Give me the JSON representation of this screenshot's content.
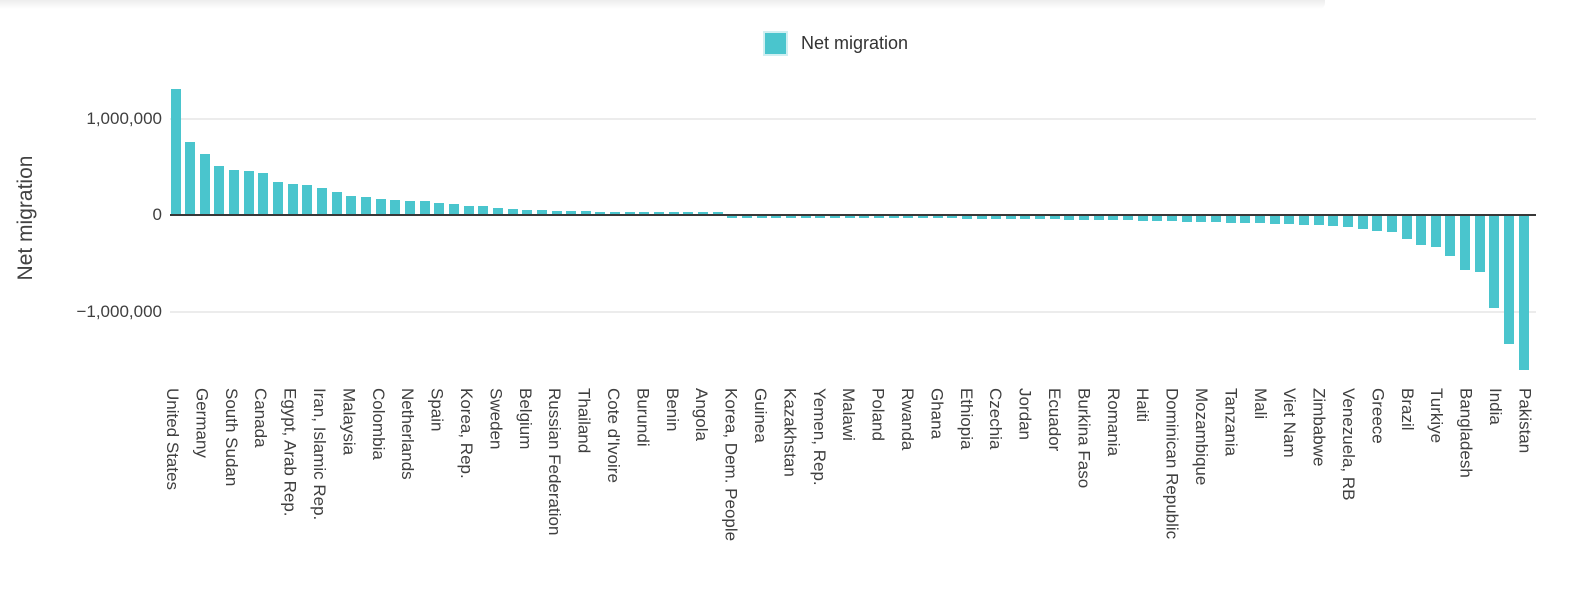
{
  "legend": {
    "label": "Net migration"
  },
  "y_axis": {
    "title": "Net migration",
    "ticks": [
      {
        "label": "1,000,000",
        "value": 1000000
      },
      {
        "label": "0",
        "value": 0
      },
      {
        "label": "−1,000,000",
        "value": -1000000
      }
    ]
  },
  "colors": {
    "bar": "#4AC5CD",
    "zero_axis": "#383838",
    "gridline": "#ececec",
    "label_text": "#3f3f3f"
  },
  "chart_data": {
    "type": "bar",
    "series_name": "Net migration",
    "title": "",
    "xlabel": "",
    "ylabel": "Net migration",
    "ylim": [
      -1700000,
      1400000
    ],
    "grid": "horizontal",
    "legend_position": "top-center",
    "n_bars": 93,
    "label_every_nth_bar": 2,
    "x_labels": [
      "United States",
      "Germany",
      "South Sudan",
      "Canada",
      "Egypt, Arab Rep.",
      "Iran, Islamic Rep.",
      "Malaysia",
      "Colombia",
      "Netherlands",
      "Spain",
      "Korea, Rep.",
      "Sweden",
      "Belgium",
      "Russian Federation",
      "Thailand",
      "Cote d'Ivoire",
      "Burundi",
      "Benin",
      "Angola",
      "Korea, Dem. People",
      "Guinea",
      "Kazakhstan",
      "Yemen, Rep.",
      "Malawi",
      "Poland",
      "Rwanda",
      "Ghana",
      "Ethiopia",
      "Czechia",
      "Jordan",
      "Ecuador",
      "Burkina Faso",
      "Romania",
      "Haiti",
      "Dominican Republic",
      "Mozambique",
      "Tanzania",
      "Mali",
      "Viet Nam",
      "Zimbabwe",
      "Venezuela, RB",
      "Greece",
      "Brazil",
      "Turkiye",
      "Bangladesh",
      "India",
      "Pakistan"
    ],
    "values": [
      1300000,
      750000,
      620000,
      500000,
      455000,
      445000,
      430000,
      330000,
      310000,
      298000,
      265000,
      230000,
      190000,
      180000,
      152000,
      145000,
      138000,
      130000,
      117000,
      103000,
      88000,
      80000,
      60000,
      54000,
      46000,
      40000,
      34000,
      30000,
      26000,
      22000,
      19000,
      16000,
      13000,
      11000,
      9000,
      7000,
      5000,
      3000,
      -1000,
      -3000,
      -5000,
      -7000,
      -9000,
      -10000,
      -12000,
      -13000,
      -15000,
      -16000,
      -18000,
      -19000,
      -21000,
      -22000,
      -24000,
      -25000,
      -27000,
      -28000,
      -30000,
      -31000,
      -33000,
      -34000,
      -36000,
      -38000,
      -40000,
      -42000,
      -44000,
      -46000,
      -48000,
      -51000,
      -54000,
      -57000,
      -60000,
      -64000,
      -68000,
      -72000,
      -76000,
      -81000,
      -86000,
      -91000,
      -97000,
      -105000,
      -117000,
      -131000,
      -155000,
      -170000,
      -235000,
      -297000,
      -321000,
      -417000,
      -563000,
      -580000,
      -950000,
      -1330000,
      -1600000
    ]
  }
}
